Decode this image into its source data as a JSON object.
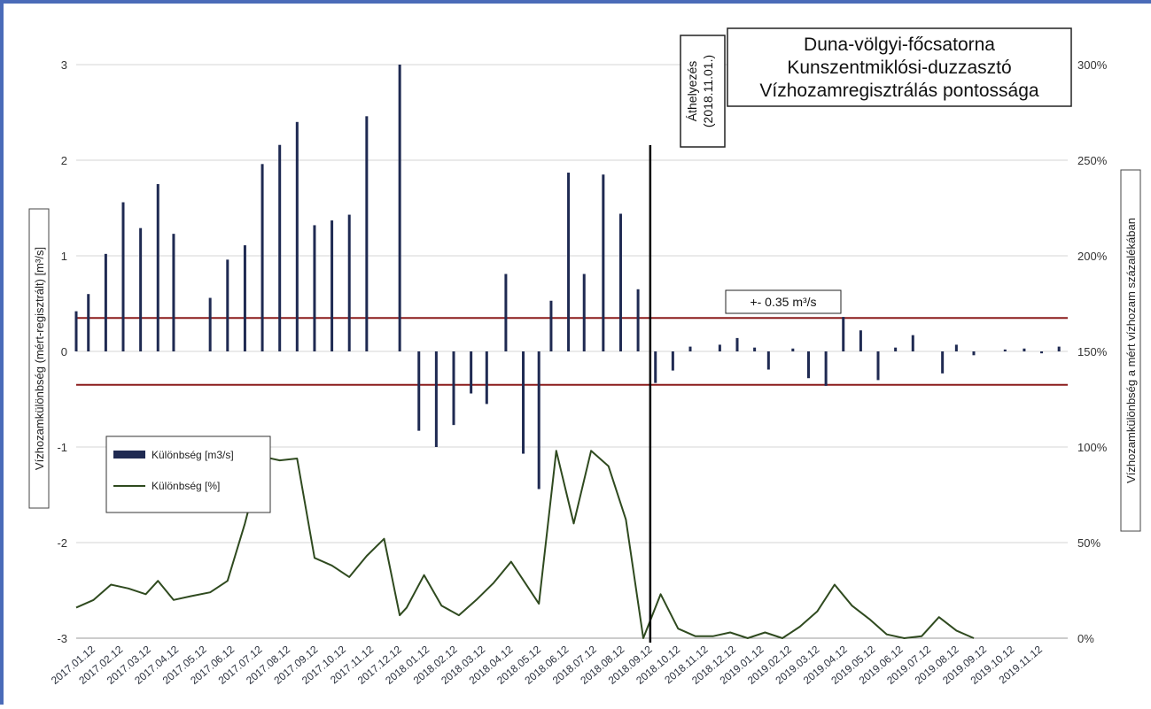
{
  "chart_data": {
    "type": "bar",
    "title_lines": [
      "Duna-völgyi-főcsatorna",
      "Kunszentmiklósi-duzzasztó",
      "Vízhozamregisztrálás pontossága"
    ],
    "ylabel_left": "Vízhozamkülönbség (mért-regisztrált) [m³/s]",
    "ylabel_right": "Vízhozamkülönbség a mért vízhozam százalékában",
    "ylim_left": [
      -3,
      3.3
    ],
    "yticks_left": [
      "3",
      "2",
      "1",
      "0",
      "-1",
      "-2",
      "-3"
    ],
    "ylim_right": [
      0,
      3.15
    ],
    "yticks_right": [
      "300%",
      "250%",
      "200%",
      "150%",
      "100%",
      "50%",
      "0%"
    ],
    "x_labels": [
      "2017.01.12",
      "2017.02.12",
      "2017.03.12",
      "2017.04.12",
      "2017.05.12",
      "2017.06.12",
      "2017.07.12",
      "2017.08.12",
      "2017.09.12",
      "2017.10.12",
      "2017.11.12",
      "2017.12.12",
      "2018.01.12",
      "2018.02.12",
      "2018.03.12",
      "2018.04.12",
      "2018.05.12",
      "2018.06.12",
      "2018.07.12",
      "2018.08.12",
      "2018.09.12",
      "2018.10.12",
      "2018.11.12",
      "2018.12.12",
      "2019.01.12",
      "2019.02.12",
      "2019.03.12",
      "2019.04.12",
      "2019.05.12",
      "2019.06.12",
      "2019.07.12",
      "2019.08.12",
      "2019.09.12",
      "2019.10.12",
      "2019.11.12"
    ],
    "bars": {
      "name": "Különbség [m3/s]",
      "color": "#1f2a52",
      "x": [
        0,
        0.7,
        1.7,
        2.7,
        3.7,
        4.7,
        5.6,
        7.7,
        8.7,
        9.7,
        10.7,
        11.7,
        12.7,
        13.7,
        14.7,
        15.7,
        16.7,
        18.6,
        19.7,
        20.7,
        21.7,
        22.7,
        23.6,
        24.7,
        25.7,
        26.6,
        27.3,
        28.3,
        29.2,
        30.3,
        31.3,
        32.3,
        33.3,
        34.3,
        35.3,
        37.0,
        38.0,
        39.0,
        39.8,
        41.2,
        42.1,
        43.1,
        44.1,
        45.1,
        46.1,
        47.1,
        48.1,
        49.8,
        50.6,
        51.6,
        53.4,
        54.5,
        55.5,
        56.5
      ],
      "values": [
        0.42,
        0.6,
        1.02,
        1.56,
        1.29,
        1.75,
        1.23,
        0.56,
        0.96,
        1.11,
        1.96,
        2.16,
        2.4,
        1.32,
        1.37,
        1.43,
        2.46,
        3.0,
        -0.83,
        -1.0,
        -0.77,
        -0.44,
        -0.55,
        0.81,
        -1.07,
        -1.44,
        0.53,
        1.87,
        0.81,
        1.85,
        1.44,
        0.65,
        -0.33,
        -0.2,
        0.05,
        0.07,
        0.14,
        0.04,
        -0.19,
        0.03,
        -0.28,
        -0.36,
        0.36,
        0.22,
        -0.3,
        0.04,
        0.17,
        -0.23,
        0.07,
        -0.04,
        0.02,
        0.03,
        -0.02,
        0.05
      ]
    },
    "line": {
      "name": "Különbség [%]",
      "color": "#2f4a1f",
      "x": [
        0,
        1.0,
        2.0,
        3.0,
        4.0,
        4.7,
        5.6,
        6.6,
        7.7,
        8.7,
        9.7,
        10.7,
        11.7,
        12.7,
        13.7,
        14.7,
        15.7,
        16.7,
        17.7,
        18.6,
        19.0,
        20.0,
        21.0,
        22.0,
        23.0,
        24.0,
        25.0,
        26.6,
        27.6,
        28.6,
        29.6,
        30.6,
        31.6,
        32.6,
        33.6,
        34.6,
        35.6,
        36.6,
        37.6,
        38.6,
        39.6,
        40.6,
        41.6,
        42.6,
        43.6,
        44.6,
        45.6,
        46.6,
        47.6,
        48.6,
        49.6,
        50.6,
        51.6
      ],
      "values": [
        0.16,
        0.2,
        0.28,
        0.26,
        0.23,
        0.3,
        0.2,
        0.22,
        0.24,
        0.3,
        0.6,
        0.95,
        0.93,
        0.94,
        0.42,
        0.38,
        0.32,
        0.43,
        0.52,
        0.12,
        0.16,
        0.33,
        0.17,
        0.12,
        0.2,
        0.29,
        0.4,
        0.18,
        0.98,
        0.6,
        0.98,
        0.9,
        0.62,
        0.0,
        0.23,
        0.05,
        0.01,
        0.01,
        0.03,
        0.0,
        0.03,
        0.0,
        0.06,
        0.14,
        0.28,
        0.17,
        0.1,
        0.02,
        0.0,
        0.01,
        0.11,
        0.04,
        0.0
      ]
    },
    "threshold_lines": {
      "values": [
        0.35,
        -0.35
      ],
      "color": "#8b1c1c",
      "label": "+- 0.35 m³/s"
    },
    "marker": {
      "label_line1": "Áthelyezés",
      "label_line2": "(2018.11.01.)",
      "x": 33.0
    },
    "legend": {
      "placement": "center-left"
    },
    "grid": true
  }
}
